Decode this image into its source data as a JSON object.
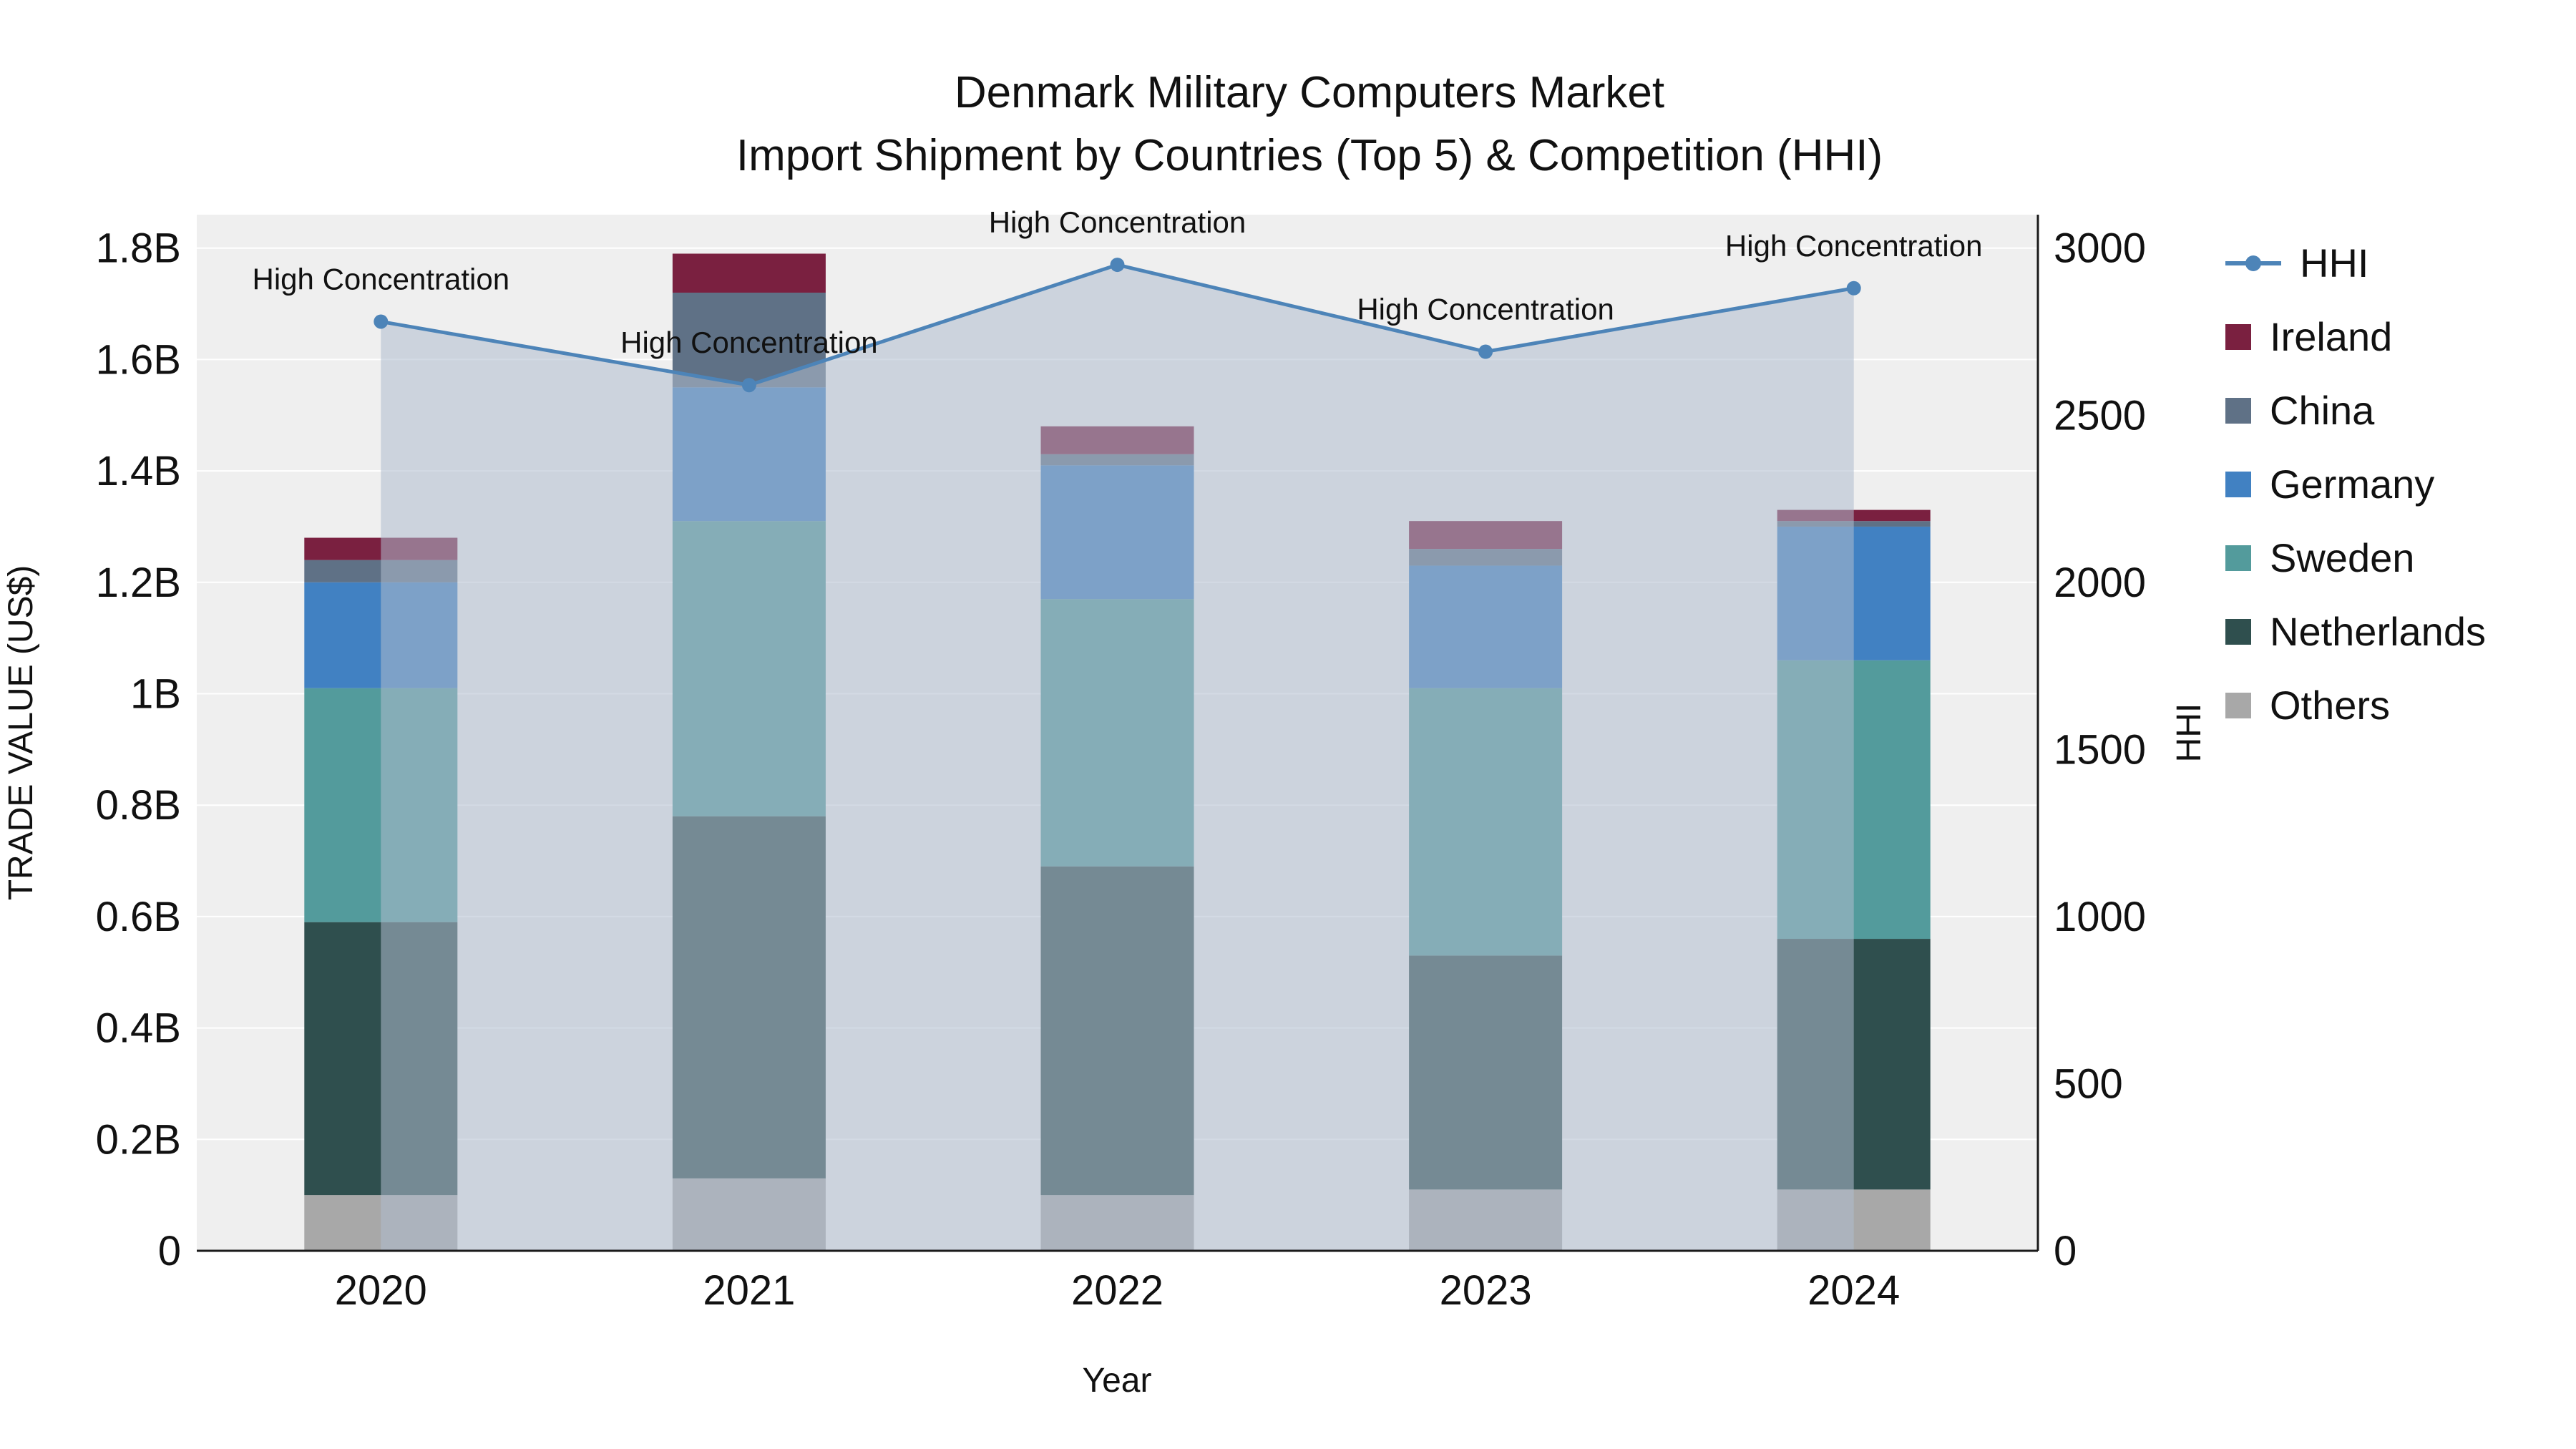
{
  "title": {
    "line1": "Denmark Military Computers Market",
    "line2": "Import Shipment by Countries (Top 5) & Competition (HHI)"
  },
  "axes": {
    "x": {
      "label": "Year",
      "categories": [
        "2020",
        "2021",
        "2022",
        "2023",
        "2024"
      ]
    },
    "y_left": {
      "label": "TRADE VALUE (US$)",
      "min": 0,
      "max": 1.86,
      "ticks": [
        {
          "v": 0,
          "t": "0"
        },
        {
          "v": 0.2,
          "t": "0.2B"
        },
        {
          "v": 0.4,
          "t": "0.4B"
        },
        {
          "v": 0.6,
          "t": "0.6B"
        },
        {
          "v": 0.8,
          "t": "0.8B"
        },
        {
          "v": 1.0,
          "t": "1B"
        },
        {
          "v": 1.2,
          "t": "1.2B"
        },
        {
          "v": 1.4,
          "t": "1.4B"
        },
        {
          "v": 1.6,
          "t": "1.6B"
        },
        {
          "v": 1.8,
          "t": "1.8B"
        }
      ]
    },
    "y_right": {
      "label": "HHI",
      "min": 0,
      "max": 3100,
      "ticks": [
        {
          "v": 0,
          "t": "0"
        },
        {
          "v": 500,
          "t": "500"
        },
        {
          "v": 1000,
          "t": "1000"
        },
        {
          "v": 1500,
          "t": "1500"
        },
        {
          "v": 2000,
          "t": "2000"
        },
        {
          "v": 2500,
          "t": "2500"
        },
        {
          "v": 3000,
          "t": "3000"
        }
      ]
    }
  },
  "colors": {
    "paper_bg": "#ffffff",
    "plot_bg": "#efefef",
    "grid": "#ffffff",
    "axis_line": "#1a1a1a",
    "text": "#111111"
  },
  "legend": {
    "items": [
      {
        "label": "HHI",
        "marker": "line",
        "color": "#4d84b8"
      },
      {
        "label": "Ireland",
        "marker": "square",
        "color": "#7a2040"
      },
      {
        "label": "China",
        "marker": "square",
        "color": "#5f7186"
      },
      {
        "label": "Germany",
        "marker": "square",
        "color": "#4181c2"
      },
      {
        "label": "Sweden",
        "marker": "square",
        "color": "#539b9c"
      },
      {
        "label": "Netherlands",
        "marker": "square",
        "color": "#2f4f4e"
      },
      {
        "label": "Others",
        "marker": "square",
        "color": "#a8a8a8"
      }
    ]
  },
  "chart_data": {
    "type": "bar",
    "subtype": "stacked-bars-with-line-overlay-and-area-fill",
    "title": "Denmark Military Computers Market\nImport Shipment by Countries (Top 5) & Competition (HHI)",
    "xlabel": "Year",
    "ylabel_left": "TRADE VALUE (US$)",
    "ylabel_right": "HHI",
    "ylim_left": [
      0,
      1.86
    ],
    "ylim_right": [
      0,
      3100
    ],
    "grid": true,
    "legend_position": "right",
    "categories": [
      "2020",
      "2021",
      "2022",
      "2023",
      "2024"
    ],
    "bar_value_unit": "billions USD",
    "series": [
      {
        "name": "Others",
        "color": "#a8a8a8",
        "values": [
          0.1,
          0.13,
          0.1,
          0.11,
          0.11
        ]
      },
      {
        "name": "Netherlands",
        "color": "#2f4f4e",
        "values": [
          0.49,
          0.65,
          0.59,
          0.42,
          0.45
        ]
      },
      {
        "name": "Sweden",
        "color": "#539b9c",
        "values": [
          0.42,
          0.53,
          0.48,
          0.48,
          0.5
        ]
      },
      {
        "name": "Germany",
        "color": "#4181c2",
        "values": [
          0.19,
          0.24,
          0.24,
          0.22,
          0.24
        ]
      },
      {
        "name": "China",
        "color": "#5f7186",
        "values": [
          0.04,
          0.17,
          0.02,
          0.03,
          0.01
        ]
      },
      {
        "name": "Ireland",
        "color": "#7a2040",
        "values": [
          0.04,
          0.07,
          0.05,
          0.05,
          0.02
        ]
      }
    ],
    "bar_totals": [
      1.28,
      1.79,
      1.48,
      1.31,
      1.33
    ],
    "line": {
      "name": "HHI",
      "axis": "right",
      "color": "#4d84b8",
      "fill_color": "#aebcce",
      "fill_opacity": 0.55,
      "values": [
        2780,
        2590,
        2950,
        2690,
        2880
      ]
    },
    "annotations": [
      {
        "category": "2020",
        "text": "High Concentration"
      },
      {
        "category": "2021",
        "text": "High Concentration"
      },
      {
        "category": "2022",
        "text": "High Concentration"
      },
      {
        "category": "2023",
        "text": "High Concentration"
      },
      {
        "category": "2024",
        "text": "High Concentration"
      }
    ]
  }
}
